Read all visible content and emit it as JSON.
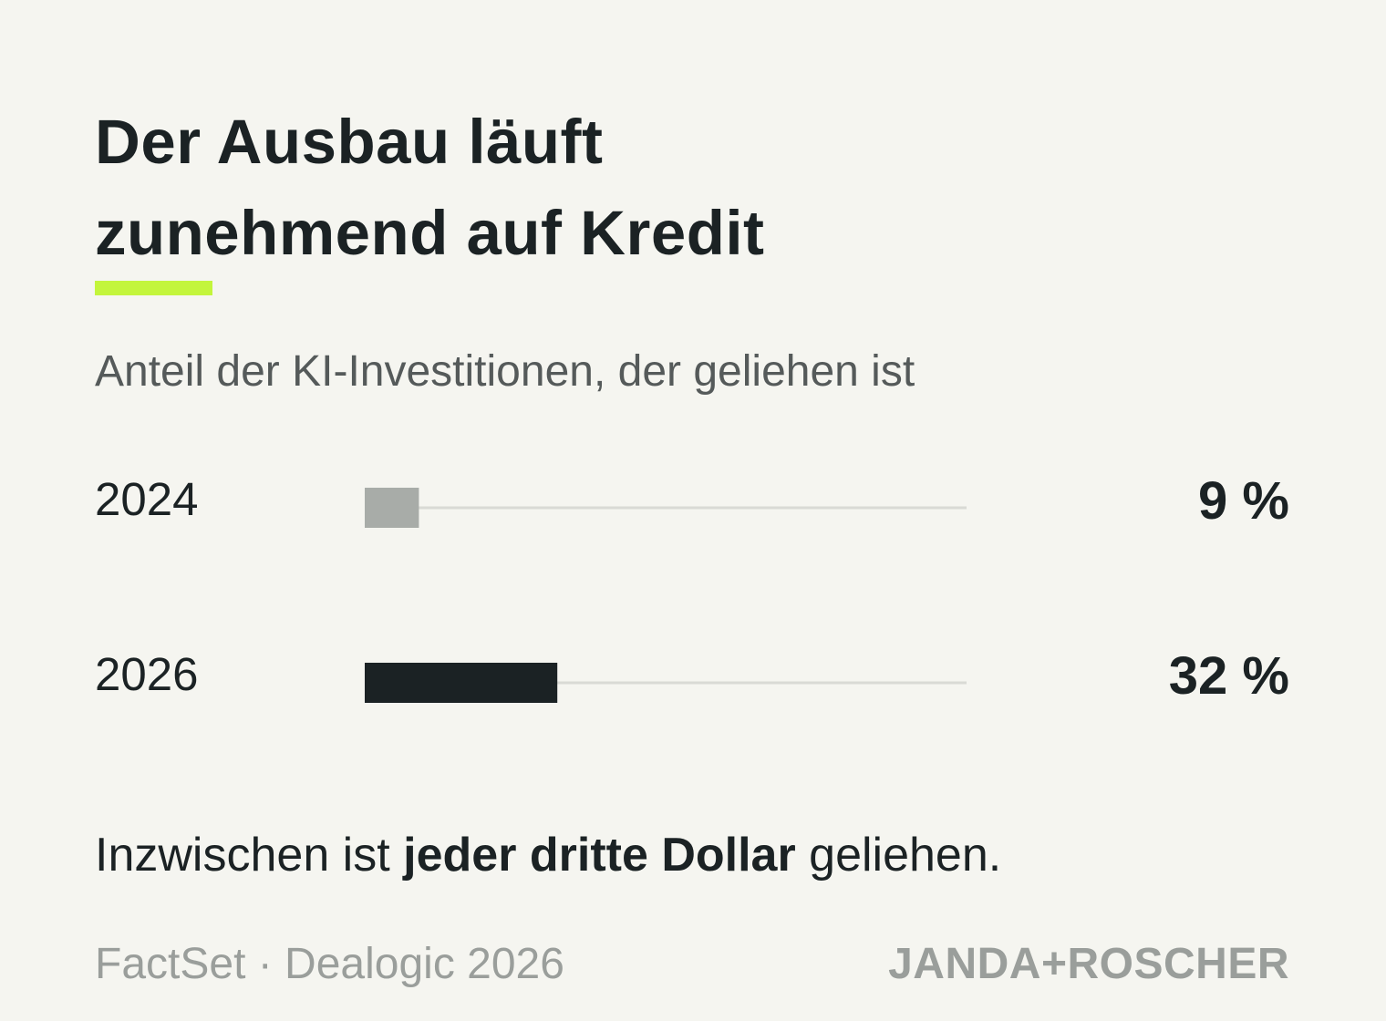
{
  "header": {
    "title_line1": "Der Ausbau läuft",
    "title_line2": "zunehmend auf Kredit",
    "accent_color": "#c3f53c"
  },
  "chart_data": {
    "type": "bar",
    "orientation": "horizontal",
    "title": "Der Ausbau läuft zunehmend auf Kredit",
    "subtitle": "Anteil der KI-Investitionen, der geliehen ist",
    "categories": [
      "2024",
      "2026"
    ],
    "values": [
      9,
      32
    ],
    "value_labels": [
      "9 %",
      "32 %"
    ],
    "unit": "%",
    "xlim": [
      0,
      100
    ],
    "grid": false,
    "bar_colors": [
      "#a8aca8",
      "#1b2224"
    ],
    "track_color": "#d9dad5"
  },
  "note": {
    "prefix": "Inzwischen ist ",
    "emphasis": "jeder dritte Dollar",
    "suffix": " geliehen."
  },
  "footer": {
    "source": "FactSet · Dealogic 2026",
    "brand": "JANDA+ROSCHER"
  }
}
